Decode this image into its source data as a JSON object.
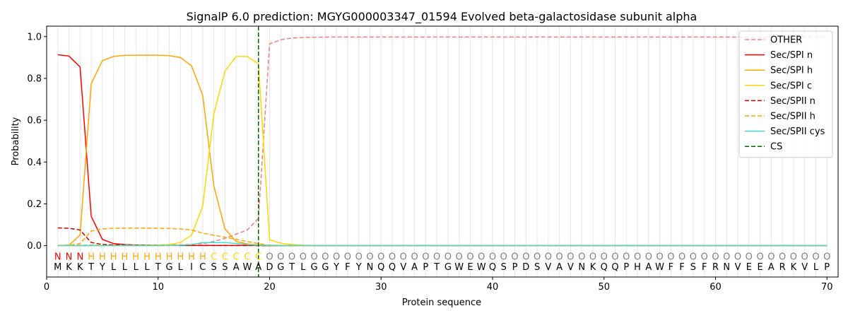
{
  "chart_data": {
    "type": "line",
    "title": "SignalP 6.0 prediction: MGYG000003347_01594 Evolved beta-galactosidase subunit alpha",
    "xlabel": "Protein sequence",
    "ylabel": "Probability",
    "xlim": [
      0,
      71
    ],
    "ylim": [
      -0.15,
      1.05
    ],
    "x_ticks": [
      0,
      10,
      20,
      30,
      40,
      50,
      60,
      70
    ],
    "y_ticks": [
      0.0,
      0.2,
      0.4,
      0.6,
      0.8,
      1.0
    ],
    "grid": "vertical lines at each residue",
    "legend_position": "top-right",
    "sequence": [
      "M",
      "K",
      "K",
      "T",
      "Y",
      "L",
      "L",
      "L",
      "L",
      "T",
      "G",
      "L",
      "I",
      "C",
      "S",
      "S",
      "A",
      "W",
      "A",
      "D",
      "G",
      "T",
      "L",
      "G",
      "G",
      "Y",
      "F",
      "Y",
      "N",
      "Q",
      "Q",
      "V",
      "A",
      "P",
      "T",
      "G",
      "W",
      "E",
      "W",
      "Q",
      "S",
      "P",
      "D",
      "S",
      "V",
      "A",
      "V",
      "N",
      "K",
      "Q",
      "Q",
      "P",
      "H",
      "A",
      "W",
      "F",
      "F",
      "S",
      "F",
      "R",
      "N",
      "V",
      "E",
      "E",
      "A",
      "R",
      "K",
      "V",
      "L",
      "P"
    ],
    "labels": [
      "N",
      "N",
      "N",
      "H",
      "H",
      "H",
      "H",
      "H",
      "H",
      "H",
      "H",
      "H",
      "H",
      "H",
      "C",
      "C",
      "C",
      "C",
      "C",
      "O",
      "O",
      "O",
      "O",
      "O",
      "O",
      "O",
      "O",
      "O",
      "O",
      "O",
      "O",
      "O",
      "O",
      "O",
      "O",
      "O",
      "O",
      "O",
      "O",
      "O",
      "O",
      "O",
      "O",
      "O",
      "O",
      "O",
      "O",
      "O",
      "O",
      "O",
      "O",
      "O",
      "O",
      "O",
      "O",
      "O",
      "O",
      "O",
      "O",
      "O",
      "O",
      "O",
      "O",
      "O",
      "O",
      "O",
      "O",
      "O",
      "O",
      "O"
    ],
    "label_colors": {
      "N": "#ff0000",
      "H": "#ffa500",
      "C": "#ffd700",
      "O": "#808080"
    },
    "cleavage_site": 19,
    "series": [
      {
        "name": "OTHER",
        "color": "#f08080",
        "dash": true,
        "values": [
          0.001,
          0.002,
          0.002,
          0.003,
          0.003,
          0.003,
          0.003,
          0.003,
          0.003,
          0.003,
          0.003,
          0.004,
          0.006,
          0.01,
          0.02,
          0.035,
          0.055,
          0.075,
          0.13,
          0.965,
          0.985,
          0.993,
          0.996,
          0.997,
          0.998,
          0.998,
          0.998,
          0.998,
          0.998,
          0.998,
          0.998,
          0.998,
          0.998,
          0.998,
          0.998,
          0.998,
          0.998,
          0.998,
          0.998,
          0.998,
          0.998,
          0.998,
          0.998,
          0.998,
          0.998,
          0.998,
          0.998,
          0.998,
          0.998,
          0.998,
          0.998,
          0.998,
          0.998,
          0.998,
          0.998,
          0.998,
          0.998,
          0.998,
          0.998,
          0.998,
          0.998,
          0.998,
          0.998,
          0.998,
          0.998,
          0.998,
          0.998,
          0.998,
          0.998,
          0.998
        ]
      },
      {
        "name": "Sec/SPI n",
        "color": "#ff0000",
        "dash": false,
        "values": [
          0.913,
          0.907,
          0.855,
          0.14,
          0.03,
          0.01,
          0.005,
          0.003,
          0.002,
          0.002,
          0.002,
          0.001,
          0.001,
          0.001,
          0.001,
          0.001,
          0.001,
          0.001,
          0.001,
          0.0,
          0.0,
          0.0,
          0.0,
          0.0,
          0.0,
          0.0,
          0.0,
          0.0,
          0.0,
          0.0,
          0.0,
          0.0,
          0.0,
          0.0,
          0.0,
          0.0,
          0.0,
          0.0,
          0.0,
          0.0,
          0.0,
          0.0,
          0.0,
          0.0,
          0.0,
          0.0,
          0.0,
          0.0,
          0.0,
          0.0,
          0.0,
          0.0,
          0.0,
          0.0,
          0.0,
          0.0,
          0.0,
          0.0,
          0.0,
          0.0,
          0.0,
          0.0,
          0.0,
          0.0,
          0.0,
          0.0,
          0.0,
          0.0,
          0.0,
          0.0
        ]
      },
      {
        "name": "Sec/SPI h",
        "color": "#ffa500",
        "dash": false,
        "values": [
          0.001,
          0.002,
          0.05,
          0.775,
          0.885,
          0.905,
          0.91,
          0.911,
          0.911,
          0.911,
          0.909,
          0.9,
          0.86,
          0.72,
          0.285,
          0.08,
          0.02,
          0.008,
          0.004,
          0.002,
          0.001,
          0.001,
          0.0,
          0.0,
          0.0,
          0.0,
          0.0,
          0.0,
          0.0,
          0.0,
          0.0,
          0.0,
          0.0,
          0.0,
          0.0,
          0.0,
          0.0,
          0.0,
          0.0,
          0.0,
          0.0,
          0.0,
          0.0,
          0.0,
          0.0,
          0.0,
          0.0,
          0.0,
          0.0,
          0.0,
          0.0,
          0.0,
          0.0,
          0.0,
          0.0,
          0.0,
          0.0,
          0.0,
          0.0,
          0.0,
          0.0,
          0.0,
          0.0,
          0.0,
          0.0,
          0.0,
          0.0,
          0.0,
          0.0,
          0.0
        ]
      },
      {
        "name": "Sec/SPI c",
        "color": "#ffd700",
        "dash": false,
        "values": [
          0.0,
          0.0,
          0.0,
          0.001,
          0.002,
          0.002,
          0.002,
          0.002,
          0.002,
          0.003,
          0.005,
          0.015,
          0.05,
          0.19,
          0.63,
          0.835,
          0.905,
          0.905,
          0.87,
          0.028,
          0.012,
          0.005,
          0.002,
          0.001,
          0.001,
          0.001,
          0.0,
          0.0,
          0.0,
          0.0,
          0.0,
          0.0,
          0.0,
          0.0,
          0.0,
          0.0,
          0.0,
          0.0,
          0.0,
          0.0,
          0.0,
          0.0,
          0.0,
          0.0,
          0.0,
          0.0,
          0.0,
          0.0,
          0.0,
          0.0,
          0.0,
          0.0,
          0.0,
          0.0,
          0.0,
          0.0,
          0.0,
          0.0,
          0.0,
          0.0,
          0.0,
          0.0,
          0.0,
          0.0,
          0.0,
          0.0,
          0.0,
          0.0,
          0.0,
          0.0
        ]
      },
      {
        "name": "Sec/SPII n",
        "color": "#cc0000",
        "dash": true,
        "values": [
          0.085,
          0.083,
          0.075,
          0.015,
          0.006,
          0.003,
          0.002,
          0.002,
          0.001,
          0.001,
          0.001,
          0.001,
          0.001,
          0.001,
          0.001,
          0.001,
          0.001,
          0.001,
          0.0,
          0.0,
          0.0,
          0.0,
          0.0,
          0.0,
          0.0,
          0.0,
          0.0,
          0.0,
          0.0,
          0.0,
          0.0,
          0.0,
          0.0,
          0.0,
          0.0,
          0.0,
          0.0,
          0.0,
          0.0,
          0.0,
          0.0,
          0.0,
          0.0,
          0.0,
          0.0,
          0.0,
          0.0,
          0.0,
          0.0,
          0.0,
          0.0,
          0.0,
          0.0,
          0.0,
          0.0,
          0.0,
          0.0,
          0.0,
          0.0,
          0.0,
          0.0,
          0.0,
          0.0,
          0.0,
          0.0,
          0.0,
          0.0,
          0.0,
          0.0,
          0.0
        ]
      },
      {
        "name": "Sec/SPII h",
        "color": "#ffa500",
        "dash": true,
        "values": [
          0.0,
          0.002,
          0.01,
          0.07,
          0.08,
          0.083,
          0.084,
          0.084,
          0.084,
          0.083,
          0.082,
          0.08,
          0.075,
          0.06,
          0.05,
          0.04,
          0.03,
          0.02,
          0.01,
          0.002,
          0.001,
          0.0,
          0.0,
          0.0,
          0.0,
          0.0,
          0.0,
          0.0,
          0.0,
          0.0,
          0.0,
          0.0,
          0.0,
          0.0,
          0.0,
          0.0,
          0.0,
          0.0,
          0.0,
          0.0,
          0.0,
          0.0,
          0.0,
          0.0,
          0.0,
          0.0,
          0.0,
          0.0,
          0.0,
          0.0,
          0.0,
          0.0,
          0.0,
          0.0,
          0.0,
          0.0,
          0.0,
          0.0,
          0.0,
          0.0,
          0.0,
          0.0,
          0.0,
          0.0,
          0.0,
          0.0,
          0.0,
          0.0,
          0.0,
          0.0
        ]
      },
      {
        "name": "Sec/SPII cys",
        "color": "#40e0d0",
        "dash": false,
        "values": [
          0.0,
          0.0,
          0.0,
          0.0,
          0.0,
          0.0,
          0.0,
          0.0,
          0.0,
          0.0,
          0.001,
          0.002,
          0.005,
          0.015,
          0.015,
          0.015,
          0.01,
          0.005,
          0.002,
          0.001,
          0.0,
          0.0,
          0.0,
          0.0,
          0.0,
          0.0,
          0.0,
          0.0,
          0.0,
          0.0,
          0.0,
          0.0,
          0.0,
          0.0,
          0.0,
          0.0,
          0.0,
          0.0,
          0.0,
          0.0,
          0.0,
          0.0,
          0.0,
          0.0,
          0.0,
          0.0,
          0.0,
          0.0,
          0.0,
          0.0,
          0.0,
          0.0,
          0.0,
          0.0,
          0.0,
          0.0,
          0.0,
          0.0,
          0.0,
          0.0,
          0.0,
          0.0,
          0.0,
          0.0,
          0.0,
          0.0,
          0.0,
          0.0,
          0.0,
          0.0
        ]
      }
    ],
    "cs_legend": {
      "name": "CS",
      "color": "#006400",
      "dash": true
    }
  }
}
